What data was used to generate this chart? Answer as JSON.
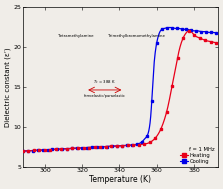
{
  "title": "",
  "xlabel": "Temperature (K)",
  "ylabel": "Dielectric constant (ε’)",
  "xlim": [
    288,
    393
  ],
  "ylim": [
    5,
    25
  ],
  "yticks": [
    5,
    10,
    15,
    20,
    25
  ],
  "xticks": [
    300,
    320,
    340,
    360,
    380
  ],
  "heating_color": "#e8001a",
  "cooling_color": "#0000e8",
  "background_color": "#f0ede8",
  "plot_bg_color": "#f0ede8",
  "legend_label_freq": "f = 1 MHz",
  "legend_label_heat": "Heating",
  "legend_label_cool": "Cooling",
  "heating_T": [
    288,
    292,
    296,
    300,
    304,
    308,
    312,
    316,
    320,
    324,
    328,
    332,
    336,
    340,
    344,
    348,
    352,
    356,
    358,
    360,
    362,
    364,
    366,
    368,
    370,
    372,
    374,
    376,
    378,
    380,
    382,
    384,
    386,
    388,
    390,
    392
  ],
  "heating_eps": [
    6.95,
    7.0,
    7.05,
    7.1,
    7.15,
    7.2,
    7.25,
    7.3,
    7.35,
    7.4,
    7.45,
    7.5,
    7.55,
    7.6,
    7.65,
    7.7,
    7.8,
    8.0,
    8.3,
    8.8,
    9.6,
    10.8,
    12.5,
    14.8,
    17.2,
    19.5,
    21.0,
    21.8,
    22.0,
    21.5,
    21.2,
    21.0,
    20.8,
    20.7,
    20.6,
    20.5
  ],
  "cooling_T": [
    288,
    292,
    296,
    300,
    304,
    308,
    312,
    316,
    320,
    324,
    328,
    332,
    336,
    340,
    344,
    348,
    350,
    352,
    354,
    356,
    357,
    358,
    360,
    362,
    364,
    366,
    368,
    370,
    372,
    374,
    376,
    378,
    380,
    382,
    384,
    386,
    388,
    390,
    392
  ],
  "cooling_eps": [
    6.95,
    7.0,
    7.05,
    7.1,
    7.15,
    7.2,
    7.25,
    7.3,
    7.35,
    7.4,
    7.45,
    7.5,
    7.55,
    7.6,
    7.65,
    7.75,
    7.85,
    8.1,
    8.6,
    9.8,
    12.0,
    16.0,
    20.5,
    22.0,
    22.3,
    22.4,
    22.4,
    22.3,
    22.3,
    22.2,
    22.2,
    22.1,
    22.0,
    22.0,
    21.9,
    21.9,
    21.8,
    21.8,
    21.7
  ]
}
